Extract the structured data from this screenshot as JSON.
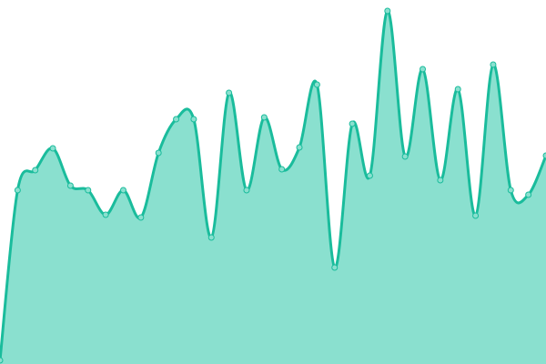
{
  "chart_data": {
    "type": "area",
    "title": "",
    "xlabel": "",
    "ylabel": "",
    "x": [
      0,
      1,
      2,
      3,
      4,
      5,
      6,
      7,
      8,
      9,
      10,
      11,
      12,
      13,
      14,
      15,
      16,
      17,
      18,
      19,
      20,
      21,
      22,
      23,
      24,
      25,
      26,
      27,
      28,
      29,
      30,
      31
    ],
    "values": [
      4,
      191,
      213,
      237,
      196,
      191,
      164,
      191,
      161,
      232,
      269,
      269,
      139,
      298,
      191,
      271,
      214,
      238,
      307,
      106,
      264,
      207,
      388,
      228,
      324,
      202,
      302,
      163,
      329,
      191,
      186,
      229
    ],
    "ylim": [
      0,
      400
    ],
    "grid": false,
    "axes_visible": false,
    "curve": "smooth",
    "markers": true,
    "colors": {
      "line": "#1abc9c",
      "fill": "#8ae0cf",
      "marker_fill": "#8ae0cf",
      "marker_stroke": "#1abc9c"
    }
  }
}
